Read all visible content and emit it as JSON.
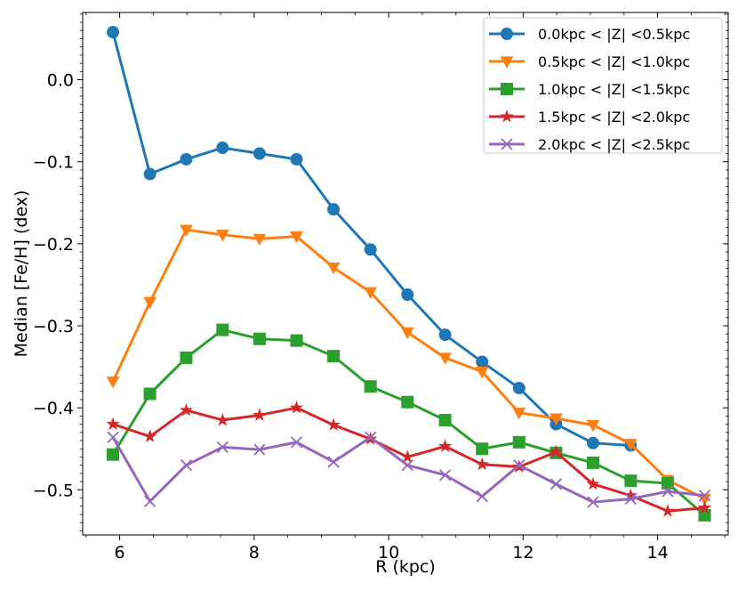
{
  "chart_data": {
    "type": "line",
    "title": "",
    "xlabel": "R (kpc)",
    "ylabel": "Median [Fe/H] (dex)",
    "xlim": [
      5.45,
      15.05
    ],
    "ylim": [
      -0.555,
      0.082
    ],
    "xticks": [
      6,
      8,
      10,
      12,
      14
    ],
    "xtick_labels": [
      "6",
      "8",
      "10",
      "12",
      "14"
    ],
    "yticks": [
      0.0,
      -0.1,
      -0.2,
      -0.3,
      -0.4,
      -0.5
    ],
    "ytick_labels": [
      "0.0",
      "−0.1",
      "−0.2",
      "−0.3",
      "−0.4",
      "−0.5"
    ],
    "grid": false,
    "legend_position": "top-right",
    "x": [
      5.9,
      6.45,
      6.99,
      7.53,
      8.08,
      8.63,
      9.18,
      9.73,
      10.28,
      10.84,
      11.39,
      11.94,
      12.49,
      13.04,
      13.6,
      14.15,
      14.7
    ],
    "series": [
      {
        "name": "0.0kpc < |Z| <0.5kpc",
        "color": "#1f77b4",
        "marker": "circle",
        "values": [
          0.058,
          -0.115,
          -0.097,
          -0.083,
          -0.09,
          -0.097,
          -0.158,
          -0.207,
          -0.262,
          -0.311,
          -0.344,
          -0.376,
          -0.42,
          -0.443,
          -0.446,
          null,
          null
        ]
      },
      {
        "name": "0.5kpc < |Z| <1.0kpc",
        "color": "#ff7f0e",
        "marker": "triangle-down",
        "values": [
          -0.368,
          -0.271,
          -0.183,
          -0.189,
          -0.194,
          -0.191,
          -0.229,
          -0.259,
          -0.308,
          -0.339,
          -0.356,
          -0.406,
          -0.413,
          -0.421,
          -0.444,
          -0.488,
          -0.511
        ]
      },
      {
        "name": "1.0kpc < |Z| <1.5kpc",
        "color": "#2ca02c",
        "marker": "square",
        "values": [
          -0.457,
          -0.383,
          -0.339,
          -0.305,
          -0.316,
          -0.318,
          -0.337,
          -0.374,
          -0.393,
          -0.415,
          -0.45,
          -0.442,
          -0.455,
          -0.467,
          -0.489,
          -0.492,
          -0.531
        ]
      },
      {
        "name": "1.5kpc < |Z| <2.0kpc",
        "color": "#d62728",
        "marker": "star",
        "values": [
          -0.42,
          -0.435,
          -0.403,
          -0.415,
          -0.409,
          -0.4,
          -0.421,
          -0.438,
          -0.46,
          -0.447,
          -0.469,
          -0.472,
          -0.454,
          -0.493,
          -0.507,
          -0.526,
          -0.522
        ]
      },
      {
        "name": "2.0kpc < |Z| <2.5kpc",
        "color": "#9467bd",
        "marker": "x",
        "values": [
          -0.436,
          -0.514,
          -0.47,
          -0.448,
          -0.451,
          -0.442,
          -0.466,
          -0.436,
          -0.47,
          -0.482,
          -0.508,
          -0.47,
          -0.493,
          -0.515,
          -0.511,
          -0.502,
          -0.507
        ]
      }
    ]
  }
}
